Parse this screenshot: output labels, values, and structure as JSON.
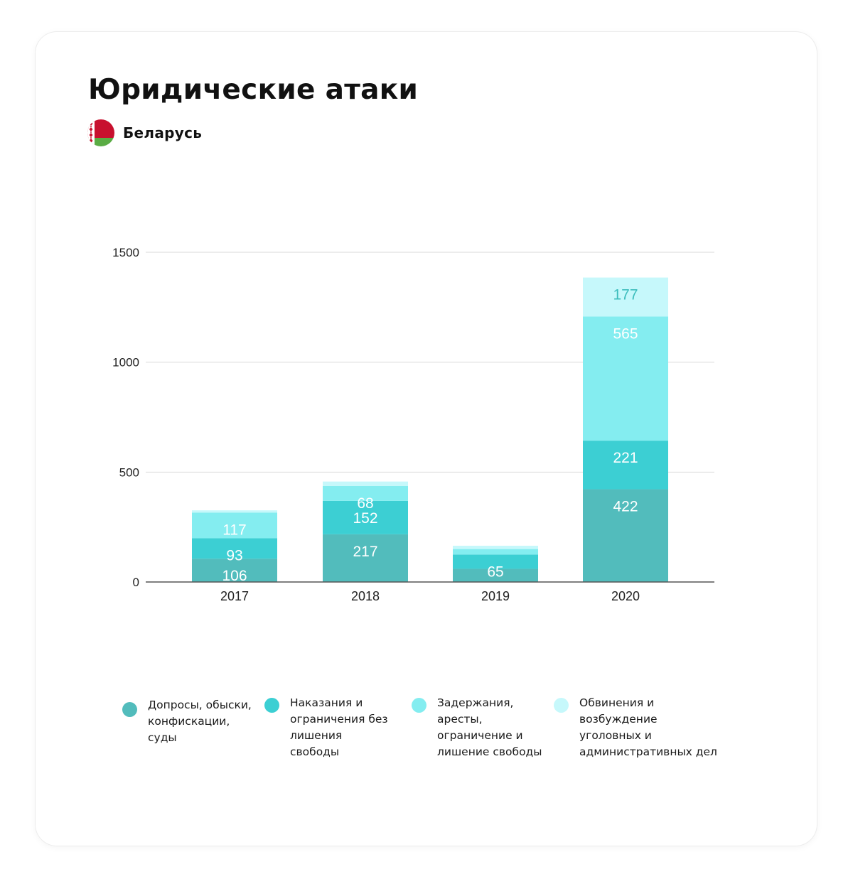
{
  "header": {
    "title": "Юридические атаки",
    "country": "Беларусь",
    "flag_icon": "belarus-flag-icon"
  },
  "chart_data": {
    "type": "bar",
    "stacked": true,
    "categories": [
      "2017",
      "2018",
      "2019",
      "2020"
    ],
    "ylim": [
      0,
      1500
    ],
    "yticks": [
      0,
      500,
      1000,
      1500
    ],
    "grid": true,
    "legend_position": "bottom",
    "series": [
      {
        "name": "Допросы, обыски, конфискации, суды",
        "color": "#52bcbc",
        "values": [
          106,
          217,
          60,
          422
        ],
        "labels": [
          "106",
          "217",
          "",
          "422"
        ]
      },
      {
        "name": "Наказания и ограничения без лишения свободы",
        "color": "#3ccfd3",
        "values": [
          93,
          152,
          65,
          221
        ],
        "labels": [
          "93",
          "152",
          "65",
          "221"
        ]
      },
      {
        "name": "Задержания, аресты, ограничение и лишение свободы",
        "color": "#84edf0",
        "values": [
          117,
          68,
          25,
          565
        ],
        "labels": [
          "117",
          "68",
          "",
          "565"
        ]
      },
      {
        "name": "Обвинения и возбуждение уголовных и административных дел",
        "color": "#c6f8fb",
        "values": [
          10,
          20,
          15,
          177
        ],
        "labels": [
          "",
          "",
          "",
          "177"
        ]
      }
    ]
  },
  "legend": {
    "items": [
      {
        "text": "Допросы, обыски,\nконфискации,\nсуды",
        "color": "#52bcbc"
      },
      {
        "text": "Наказания и\nограничения без\nлишения\nсвободы",
        "color": "#3ccfd3"
      },
      {
        "text": "Задержания,\nаресты,\nограничение и\nлишение свободы",
        "color": "#84edf0"
      },
      {
        "text": "Обвинения и\nвозбуждение\nуголовных и\nадминистративных дел",
        "color": "#c6f8fb"
      }
    ]
  }
}
